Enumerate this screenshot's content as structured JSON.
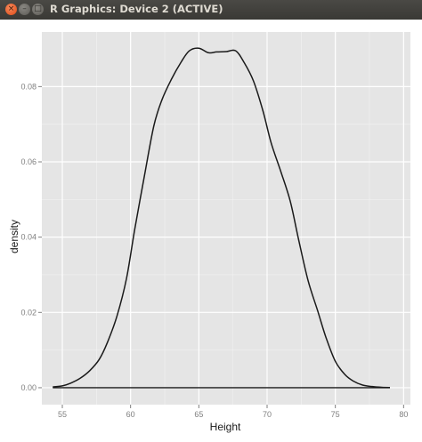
{
  "window": {
    "title": "R Graphics: Device 2 (ACTIVE)",
    "buttons": {
      "close": "×",
      "minimize": "–",
      "maximize": "□"
    }
  },
  "colors": {
    "panel_bg": "#e5e5e5",
    "grid_major": "#ffffff",
    "grid_minor": "#f2f2f2",
    "curve": "#1a1a1a",
    "tick_text": "#7f7f7f"
  },
  "chart_data": {
    "type": "line",
    "title": "",
    "xlabel": "Height",
    "ylabel": "density",
    "xlim": [
      53.5,
      80.5
    ],
    "ylim": [
      -0.0045,
      0.0945
    ],
    "x_ticks": [
      55,
      60,
      65,
      70,
      75,
      80
    ],
    "x_tick_labels": [
      "55",
      "60",
      "65",
      "70",
      "75",
      "80"
    ],
    "y_ticks": [
      0.0,
      0.02,
      0.04,
      0.06,
      0.08
    ],
    "y_tick_labels": [
      "0.00",
      "0.02",
      "0.04",
      "0.06",
      "0.08"
    ],
    "grid": true,
    "legend": "none",
    "series": [
      {
        "x": [
          54.3,
          55.0,
          55.6,
          56.3,
          57.0,
          57.7,
          58.3,
          59.0,
          59.7,
          60.3,
          61.0,
          61.7,
          62.3,
          63.0,
          63.7,
          64.3,
          65.0,
          65.7,
          66.3,
          67.0,
          67.7,
          68.3,
          69.0,
          69.7,
          70.3,
          71.0,
          71.7,
          72.3,
          73.0,
          73.7,
          74.3,
          75.0,
          75.7,
          76.3,
          77.0,
          77.7,
          78.4,
          79.0
        ],
        "y": [
          0.0002,
          0.0005,
          0.0012,
          0.0025,
          0.0045,
          0.0075,
          0.012,
          0.019,
          0.029,
          0.042,
          0.056,
          0.0695,
          0.0765,
          0.082,
          0.0865,
          0.0895,
          0.0902,
          0.089,
          0.0892,
          0.0893,
          0.0895,
          0.0865,
          0.0815,
          0.0735,
          0.065,
          0.0575,
          0.0495,
          0.0395,
          0.0285,
          0.0205,
          0.0135,
          0.007,
          0.0035,
          0.0018,
          0.0007,
          0.0003,
          0.0001,
          5e-05
        ]
      }
    ]
  }
}
